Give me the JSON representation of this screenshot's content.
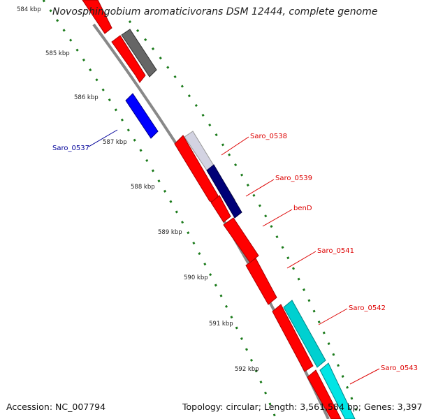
{
  "title": "Novosphingobium aromaticivorans DSM 12444, complete genome",
  "accession_label": "Accession:",
  "accession": "NC_007794",
  "topology_label": "Topology:",
  "topology": "circular",
  "length_label": "Length:",
  "length": "3,561,584 bp",
  "genes_label": "Genes:",
  "genes": "3,397",
  "colors": {
    "forward_gene": "#ff0000",
    "reverse_gene": "#0000ff",
    "cyan_gene": "#00e5e5",
    "gray_gene": "#666666",
    "backbone": "#888888",
    "tick": "#1a7a1a",
    "label_red": "#dd0000",
    "label_blue": "#000099"
  },
  "ticks": [
    {
      "label": "584 kbp"
    },
    {
      "label": "585 kbp"
    },
    {
      "label": "586 kbp"
    },
    {
      "label": "587 kbp"
    },
    {
      "label": "588 kbp"
    },
    {
      "label": "589 kbp"
    },
    {
      "label": "590 kbp"
    },
    {
      "label": "591 kbp"
    },
    {
      "label": "592 kbp"
    }
  ],
  "gene_labels": [
    {
      "name": "Saro_0537",
      "color": "blue"
    },
    {
      "name": "Saro_0538",
      "color": "red"
    },
    {
      "name": "Saro_0539",
      "color": "red"
    },
    {
      "name": "benD",
      "color": "red"
    },
    {
      "name": "Saro_0541",
      "color": "red"
    },
    {
      "name": "Saro_0542",
      "color": "red"
    },
    {
      "name": "Saro_0543",
      "color": "red"
    }
  ]
}
